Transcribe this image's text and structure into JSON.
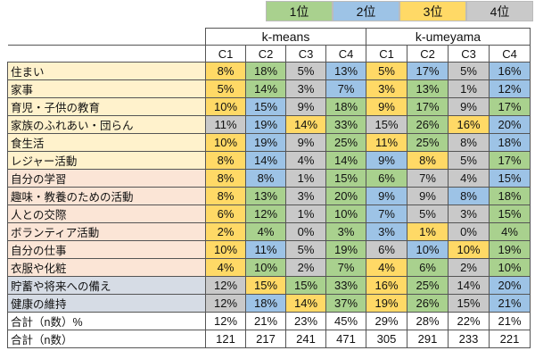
{
  "legend": {
    "items": [
      {
        "label": "1位",
        "color": "#a9d18e"
      },
      {
        "label": "2位",
        "color": "#9dc3e6"
      },
      {
        "label": "3位",
        "color": "#ffd966"
      },
      {
        "label": "4位",
        "color": "#c9c9c9"
      }
    ]
  },
  "colors": {
    "1": "#a9d18e",
    "2": "#9dc3e6",
    "3": "#ffd966",
    "4": "#c9c9c9",
    "label_groups": [
      "#fff2cc",
      "#fbe5d6",
      "#d6dce5",
      "#ffffff"
    ]
  },
  "table": {
    "groups": [
      "k-means",
      "k-umeyama"
    ],
    "columns": [
      "C1",
      "C2",
      "C3",
      "C4",
      "C1",
      "C2",
      "C3",
      "C4"
    ],
    "rows": [
      {
        "label": "住まい",
        "g": 0,
        "cells": [
          [
            "8%",
            3
          ],
          [
            "18%",
            1
          ],
          [
            "5%",
            4
          ],
          [
            "13%",
            2
          ],
          [
            "5%",
            3
          ],
          [
            "17%",
            2
          ],
          [
            "5%",
            4
          ],
          [
            "16%",
            2
          ]
        ]
      },
      {
        "label": "家事",
        "g": 0,
        "cells": [
          [
            "5%",
            3
          ],
          [
            "14%",
            1
          ],
          [
            "3%",
            4
          ],
          [
            "7%",
            2
          ],
          [
            "3%",
            3
          ],
          [
            "13%",
            1
          ],
          [
            "1%",
            4
          ],
          [
            "12%",
            2
          ]
        ]
      },
      {
        "label": "育児・子供の教育",
        "g": 0,
        "cells": [
          [
            "10%",
            3
          ],
          [
            "15%",
            2
          ],
          [
            "9%",
            4
          ],
          [
            "18%",
            1
          ],
          [
            "9%",
            3
          ],
          [
            "17%",
            1
          ],
          [
            "9%",
            4
          ],
          [
            "17%",
            1
          ]
        ]
      },
      {
        "label": "家族のふれあい・団らん",
        "g": 0,
        "cells": [
          [
            "11%",
            4
          ],
          [
            "19%",
            2
          ],
          [
            "14%",
            3
          ],
          [
            "33%",
            1
          ],
          [
            "15%",
            4
          ],
          [
            "26%",
            1
          ],
          [
            "16%",
            3
          ],
          [
            "20%",
            2
          ]
        ]
      },
      {
        "label": "食生活",
        "g": 0,
        "cells": [
          [
            "10%",
            3
          ],
          [
            "19%",
            2
          ],
          [
            "9%",
            4
          ],
          [
            "25%",
            1
          ],
          [
            "11%",
            3
          ],
          [
            "25%",
            1
          ],
          [
            "8%",
            4
          ],
          [
            "18%",
            2
          ]
        ]
      },
      {
        "label": "レジャー活動",
        "g": 0,
        "cells": [
          [
            "8%",
            3
          ],
          [
            "14%",
            2
          ],
          [
            "4%",
            4
          ],
          [
            "14%",
            1
          ],
          [
            "9%",
            2
          ],
          [
            "8%",
            3
          ],
          [
            "5%",
            4
          ],
          [
            "17%",
            1
          ]
        ]
      },
      {
        "label": "自分の学習",
        "g": 1,
        "cells": [
          [
            "8%",
            3
          ],
          [
            "8%",
            2
          ],
          [
            "1%",
            4
          ],
          [
            "15%",
            1
          ],
          [
            "6%",
            1
          ],
          [
            "7%",
            4
          ],
          [
            "4%",
            4
          ],
          [
            "15%",
            2
          ]
        ]
      },
      {
        "label": "趣味・教養のための活動",
        "g": 1,
        "cells": [
          [
            "8%",
            3
          ],
          [
            "13%",
            1
          ],
          [
            "3%",
            4
          ],
          [
            "20%",
            1
          ],
          [
            "9%",
            2
          ],
          [
            "9%",
            4
          ],
          [
            "8%",
            2
          ],
          [
            "18%",
            1
          ]
        ]
      },
      {
        "label": "人との交際",
        "g": 1,
        "cells": [
          [
            "6%",
            3
          ],
          [
            "12%",
            1
          ],
          [
            "1%",
            4
          ],
          [
            "10%",
            1
          ],
          [
            "7%",
            2
          ],
          [
            "5%",
            4
          ],
          [
            "3%",
            4
          ],
          [
            "15%",
            1
          ]
        ]
      },
      {
        "label": "ボランティア活動",
        "g": 1,
        "cells": [
          [
            "2%",
            3
          ],
          [
            "4%",
            1
          ],
          [
            "0%",
            4
          ],
          [
            "3%",
            1
          ],
          [
            "3%",
            2
          ],
          [
            "1%",
            3
          ],
          [
            "0%",
            4
          ],
          [
            "4%",
            1
          ]
        ]
      },
      {
        "label": "自分の仕事",
        "g": 1,
        "cells": [
          [
            "10%",
            3
          ],
          [
            "11%",
            2
          ],
          [
            "5%",
            4
          ],
          [
            "19%",
            1
          ],
          [
            "6%",
            4
          ],
          [
            "10%",
            2
          ],
          [
            "10%",
            3
          ],
          [
            "19%",
            1
          ]
        ]
      },
      {
        "label": "衣服や化粧",
        "g": 1,
        "cells": [
          [
            "4%",
            3
          ],
          [
            "10%",
            1
          ],
          [
            "2%",
            4
          ],
          [
            "7%",
            1
          ],
          [
            "4%",
            3
          ],
          [
            "6%",
            1
          ],
          [
            "2%",
            4
          ],
          [
            "10%",
            1
          ]
        ]
      },
      {
        "label": "貯蓄や将来への備え",
        "g": 2,
        "cells": [
          [
            "12%",
            4
          ],
          [
            "15%",
            3
          ],
          [
            "15%",
            1
          ],
          [
            "33%",
            1
          ],
          [
            "16%",
            3
          ],
          [
            "25%",
            1
          ],
          [
            "14%",
            4
          ],
          [
            "20%",
            2
          ]
        ]
      },
      {
        "label": "健康の維持",
        "g": 2,
        "cells": [
          [
            "12%",
            4
          ],
          [
            "18%",
            2
          ],
          [
            "14%",
            3
          ],
          [
            "37%",
            1
          ],
          [
            "19%",
            3
          ],
          [
            "26%",
            1
          ],
          [
            "15%",
            4
          ],
          [
            "21%",
            2
          ]
        ]
      },
      {
        "label": "合計（n数）%",
        "g": 3,
        "cells": [
          [
            "12%",
            0
          ],
          [
            "21%",
            0
          ],
          [
            "23%",
            0
          ],
          [
            "45%",
            0
          ],
          [
            "29%",
            0
          ],
          [
            "28%",
            0
          ],
          [
            "22%",
            0
          ],
          [
            "21%",
            0
          ]
        ]
      },
      {
        "label": "合計（n数）",
        "g": 3,
        "cells": [
          [
            "121",
            0
          ],
          [
            "217",
            0
          ],
          [
            "241",
            0
          ],
          [
            "471",
            0
          ],
          [
            "305",
            0
          ],
          [
            "291",
            0
          ],
          [
            "233",
            0
          ],
          [
            "221",
            0
          ]
        ]
      }
    ]
  }
}
